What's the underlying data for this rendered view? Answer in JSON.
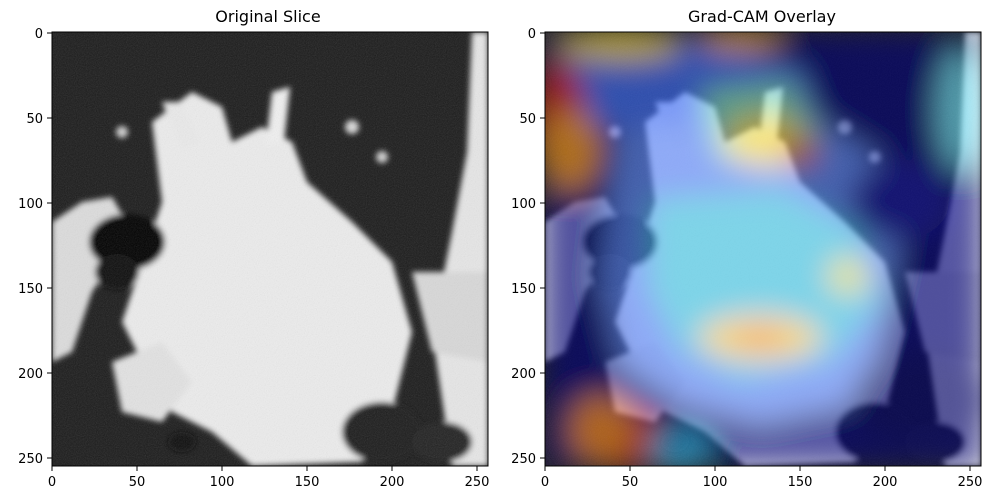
{
  "panels": [
    {
      "title": "Original Slice",
      "x_ticks": [
        "0",
        "50",
        "100",
        "150",
        "200",
        "250"
      ],
      "y_ticks": [
        "0",
        "50",
        "100",
        "150",
        "200",
        "250"
      ]
    },
    {
      "title": "Grad-CAM Overlay",
      "x_ticks": [
        "0",
        "50",
        "100",
        "150",
        "200",
        "250"
      ],
      "y_ticks": [
        "0",
        "50",
        "100",
        "150",
        "200",
        "250"
      ]
    }
  ],
  "image_description": {
    "left": "grayscale CT lung slice",
    "right": "same slice with jet-colormap heat overlay"
  },
  "colors": {
    "ct_dark": "#1a1a1a",
    "ct_tissue": "#e8e8e8",
    "heat_low": "#00008b",
    "heat_mid": "#40e0d0",
    "heat_warm": "#ffff00",
    "heat_high": "#d71a1a"
  }
}
